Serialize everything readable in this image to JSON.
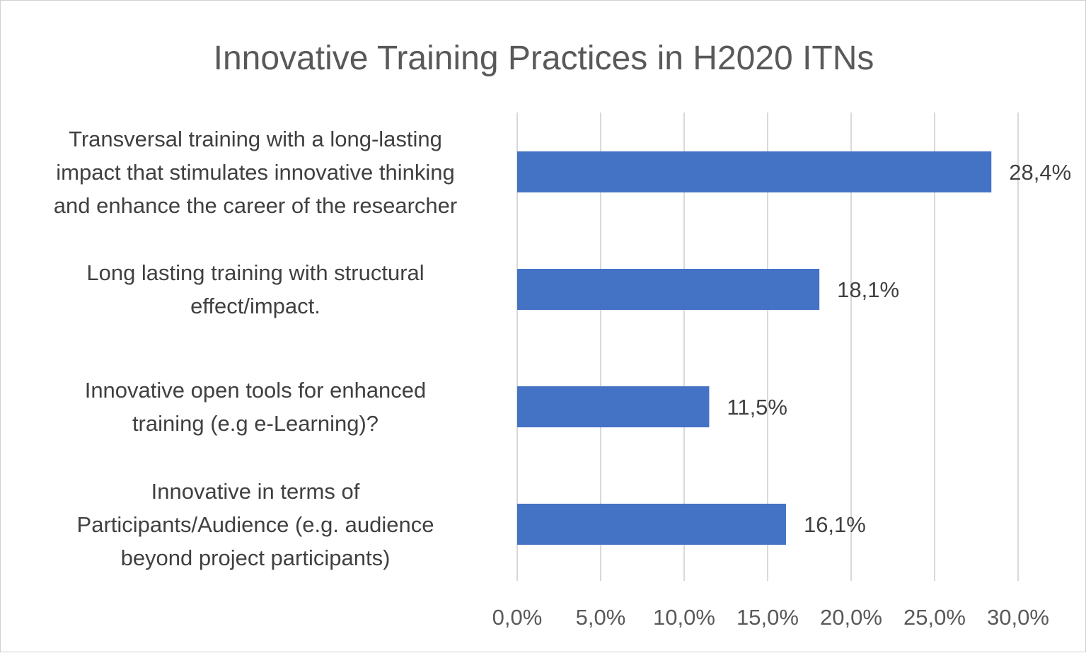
{
  "chart_data": {
    "type": "bar",
    "orientation": "horizontal",
    "title": "Innovative Training Practices in H2020 ITNs",
    "categories": [
      "Transversal training with a long-lasting\nimpact that stimulates innovative thinking\nand enhance the career of the researcher",
      "Long lasting training with structural\neffect/impact.",
      "Innovative open tools for enhanced\ntraining (e.g e-Learning)?",
      "Innovative in terms of\nParticipants/Audience (e.g. audience\nbeyond project participants)"
    ],
    "values": [
      28.4,
      18.1,
      11.5,
      16.1
    ],
    "data_labels": [
      "28,4%",
      "18,1%",
      "11,5%",
      "16,1%"
    ],
    "xlim": [
      0,
      30
    ],
    "x_ticks": [
      0,
      5,
      10,
      15,
      20,
      25,
      30
    ],
    "x_tick_labels": [
      "0,0%",
      "5,0%",
      "10,0%",
      "15,0%",
      "20,0%",
      "25,0%",
      "30,0%"
    ],
    "xlabel": "",
    "ylabel": "",
    "grid": "vertical",
    "legend": "none",
    "bar_color": "#4472C4",
    "grid_color": "#d9d9d9"
  }
}
